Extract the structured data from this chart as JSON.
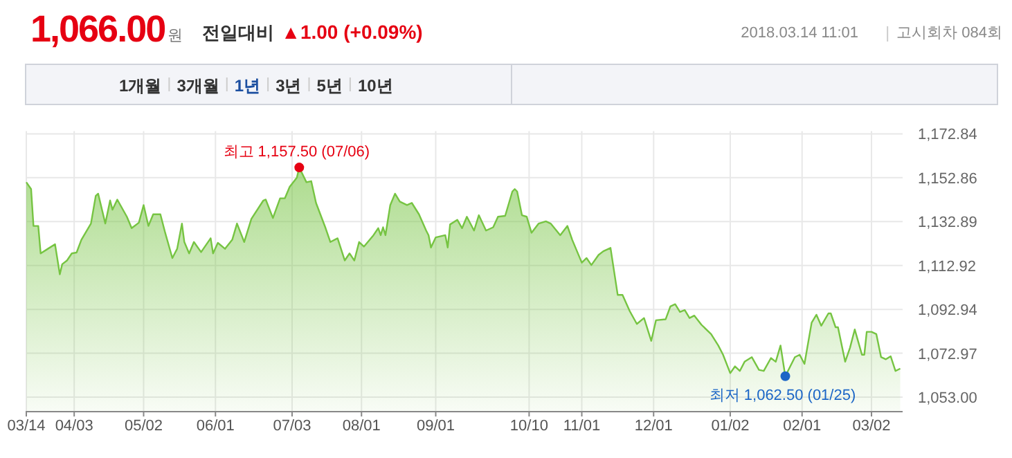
{
  "chart_data": {
    "type": "area",
    "title": "1,066.00",
    "annotations": [
      "원",
      "전일대비",
      "▲1.00 (+0.09%)",
      "2018.03.14 11:01",
      "고시회차 084회",
      "1개월",
      "3개월",
      "1년",
      "3년",
      "5년",
      "10년",
      {
        "text": "최고 1,157.50 (07/06)",
        "x": "2017-07-06",
        "y": 1157.5
      },
      {
        "text": "최저 1,062.50 (01/25)",
        "x": "2018-01-25",
        "y": 1062.5
      }
    ],
    "xlim": [
      "2017-03-14",
      "2018-03-15"
    ],
    "xticks": [
      {
        "value": "2017-03-14",
        "label": "03/14"
      },
      {
        "value": "2017-04-03",
        "label": "04/03"
      },
      {
        "value": "2017-05-02",
        "label": "05/02"
      },
      {
        "value": "2017-06-01",
        "label": "06/01"
      },
      {
        "value": "2017-07-03",
        "label": "07/03"
      },
      {
        "value": "2017-08-01",
        "label": "08/01"
      },
      {
        "value": "2017-09-01",
        "label": "09/01"
      },
      {
        "value": "2017-10-10",
        "label": "10/10"
      },
      {
        "value": "2017-11-01",
        "label": "11/01"
      },
      {
        "value": "2017-12-01",
        "label": "12/01"
      },
      {
        "value": "2018-01-02",
        "label": "01/02"
      },
      {
        "value": "2018-02-01",
        "label": "02/01"
      },
      {
        "value": "2018-03-02",
        "label": "03/02"
      }
    ],
    "ylim": [
      1046.7,
      1172.84
    ],
    "yticks": [
      {
        "value": 1053.0,
        "label": "1,053.00"
      },
      {
        "value": 1072.97,
        "label": "1,072.97"
      },
      {
        "value": 1092.94,
        "label": "1,092.94"
      },
      {
        "value": 1112.92,
        "label": "1,112.92"
      },
      {
        "value": 1132.89,
        "label": "1,132.89"
      },
      {
        "value": 1152.86,
        "label": "1,152.86"
      },
      {
        "value": 1172.84,
        "label": "1,172.84"
      }
    ],
    "grid": true,
    "series": [
      {
        "color": "#76c442",
        "x": [
          "2017-03-14",
          "2017-03-16",
          "2017-03-17",
          "2017-03-19",
          "2017-03-20",
          "2017-03-23",
          "2017-03-26",
          "2017-03-28",
          "2017-03-29",
          "2017-03-31",
          "2017-04-02",
          "2017-04-04",
          "2017-04-06",
          "2017-04-10",
          "2017-04-12",
          "2017-04-13",
          "2017-04-16",
          "2017-04-18",
          "2017-04-19",
          "2017-04-21",
          "2017-04-25",
          "2017-04-27",
          "2017-04-30",
          "2017-05-02",
          "2017-05-04",
          "2017-05-06",
          "2017-05-09",
          "2017-05-11",
          "2017-05-14",
          "2017-05-16",
          "2017-05-18",
          "2017-05-19",
          "2017-05-21",
          "2017-05-23",
          "2017-05-26",
          "2017-05-30",
          "2017-05-31",
          "2017-06-02",
          "2017-06-05",
          "2017-06-08",
          "2017-06-10",
          "2017-06-13",
          "2017-06-16",
          "2017-06-21",
          "2017-06-22",
          "2017-06-25",
          "2017-06-28",
          "2017-06-30",
          "2017-07-02",
          "2017-07-05",
          "2017-07-06",
          "2017-07-09",
          "2017-07-11",
          "2017-07-13",
          "2017-07-17",
          "2017-07-19",
          "2017-07-22",
          "2017-07-25",
          "2017-07-27",
          "2017-07-29",
          "2017-07-31",
          "2017-08-02",
          "2017-08-06",
          "2017-08-08",
          "2017-08-09",
          "2017-08-10",
          "2017-08-11",
          "2017-08-13",
          "2017-08-15",
          "2017-08-17",
          "2017-08-20",
          "2017-08-22",
          "2017-08-25",
          "2017-08-28",
          "2017-08-29",
          "2017-08-30",
          "2017-09-01",
          "2017-09-05",
          "2017-09-06",
          "2017-09-07",
          "2017-09-10",
          "2017-09-12",
          "2017-09-14",
          "2017-09-17",
          "2017-09-19",
          "2017-09-22",
          "2017-09-25",
          "2017-09-27",
          "2017-09-30",
          "2017-10-03",
          "2017-10-04",
          "2017-10-05",
          "2017-10-07",
          "2017-10-09",
          "2017-10-11",
          "2017-10-14",
          "2017-10-17",
          "2017-10-19",
          "2017-10-23",
          "2017-10-26",
          "2017-10-28",
          "2017-11-01",
          "2017-11-03",
          "2017-11-05",
          "2017-11-08",
          "2017-11-10",
          "2017-11-13",
          "2017-11-16",
          "2017-11-18",
          "2017-11-21",
          "2017-11-24",
          "2017-11-27",
          "2017-11-30",
          "2017-12-02",
          "2017-12-06",
          "2017-12-08",
          "2017-12-10",
          "2017-12-12",
          "2017-12-14",
          "2017-12-16",
          "2017-12-18",
          "2017-12-21",
          "2017-12-25",
          "2017-12-28",
          "2017-12-30",
          "2018-01-02",
          "2018-01-04",
          "2018-01-06",
          "2018-01-08",
          "2018-01-11",
          "2018-01-14",
          "2018-01-16",
          "2018-01-19",
          "2018-01-21",
          "2018-01-23",
          "2018-01-25",
          "2018-01-29",
          "2018-01-31",
          "2018-02-02",
          "2018-02-05",
          "2018-02-07",
          "2018-02-09",
          "2018-02-12",
          "2018-02-13",
          "2018-02-15",
          "2018-02-16",
          "2018-02-19",
          "2018-02-21",
          "2018-02-23",
          "2018-02-26",
          "2018-02-27",
          "2018-02-28",
          "2018-03-02",
          "2018-03-04",
          "2018-03-06",
          "2018-03-08",
          "2018-03-10",
          "2018-03-12",
          "2018-03-14"
        ],
        "values": [
          1150.8,
          1147.7,
          1130.9,
          1130.9,
          1118.4,
          1120.5,
          1122.6,
          1108.9,
          1113.5,
          1115.2,
          1118.4,
          1118.8,
          1124.6,
          1132.0,
          1144.6,
          1145.6,
          1132.0,
          1142.5,
          1138.3,
          1142.9,
          1135.1,
          1129.9,
          1132.4,
          1140.4,
          1130.9,
          1136.2,
          1136.2,
          1127.8,
          1116.3,
          1120.5,
          1132.0,
          1123.6,
          1118.4,
          1123.6,
          1119.0,
          1125.3,
          1118.4,
          1123.2,
          1120.5,
          1124.6,
          1132.0,
          1123.6,
          1134.1,
          1142.5,
          1142.9,
          1134.5,
          1143.5,
          1143.5,
          1148.7,
          1152.9,
          1157.5,
          1150.8,
          1151.3,
          1141.4,
          1129.9,
          1123.6,
          1125.3,
          1115.2,
          1118.4,
          1115.2,
          1123.6,
          1121.5,
          1126.7,
          1129.9,
          1126.7,
          1130.3,
          1126.7,
          1140.4,
          1145.6,
          1142.0,
          1140.4,
          1141.4,
          1136.2,
          1128.8,
          1126.7,
          1121.1,
          1125.7,
          1126.7,
          1121.1,
          1131.6,
          1133.7,
          1129.9,
          1135.1,
          1128.8,
          1135.8,
          1128.8,
          1130.3,
          1135.1,
          1135.5,
          1146.6,
          1147.7,
          1146.6,
          1135.8,
          1135.1,
          1127.8,
          1132.0,
          1133.0,
          1132.0,
          1126.7,
          1130.9,
          1124.6,
          1114.2,
          1116.3,
          1113.1,
          1117.7,
          1119.4,
          1120.9,
          1099.5,
          1099.5,
          1092.2,
          1086.3,
          1089.0,
          1078.6,
          1088.0,
          1088.4,
          1094.3,
          1095.3,
          1091.8,
          1092.6,
          1089.0,
          1090.1,
          1085.9,
          1081.7,
          1076.5,
          1072.3,
          1063.9,
          1067.0,
          1064.9,
          1069.1,
          1071.2,
          1065.4,
          1064.9,
          1070.8,
          1069.1,
          1076.5,
          1062.5,
          1071.2,
          1072.3,
          1068.1,
          1086.9,
          1090.5,
          1085.5,
          1091.1,
          1091.1,
          1084.8,
          1084.8,
          1069.1,
          1075.4,
          1083.8,
          1072.3,
          1072.3,
          1082.7,
          1082.7,
          1081.7,
          1071.2,
          1070.2,
          1071.6,
          1064.9,
          1066.0
        ]
      },
      {
        "type": "scatter",
        "color": "#e60012",
        "x": [
          "2017-07-06"
        ],
        "values": [
          1157.5
        ]
      },
      {
        "type": "scatter",
        "color": "#1c66c6",
        "x": [
          "2018-01-25"
        ],
        "values": [
          1062.5
        ]
      }
    ]
  }
}
